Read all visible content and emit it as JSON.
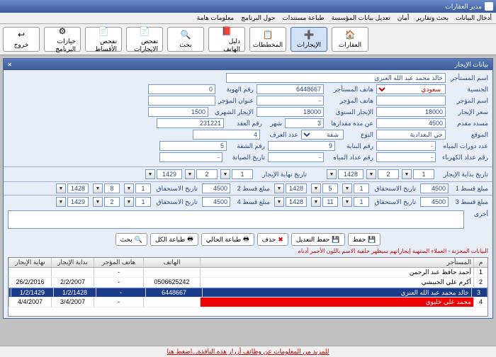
{
  "window": {
    "title": "مدير العقارات"
  },
  "menu": [
    "أدخال البيانات",
    "بحث وتقارير",
    "أمان",
    "تعديل بيانات المؤسسة",
    "طباعة مستندات",
    "حول البرنامج",
    "معلومات هامة"
  ],
  "toolbar": [
    {
      "label": "العقارات",
      "ico": "🏠"
    },
    {
      "label": "الإيجارات",
      "ico": "➕",
      "active": true
    },
    {
      "label": "المخططات",
      "ico": "📋"
    },
    {
      "label": "دليل الهاتف",
      "ico": "📕"
    },
    {
      "label": "بحث",
      "ico": "🔍"
    },
    {
      "label": "تفحص الايجارات",
      "ico": "📄"
    },
    {
      "label": "تفحص الأقساط",
      "ico": "📄"
    },
    {
      "label": "خيارات البرنامج",
      "ico": "⚙"
    },
    {
      "label": "خروج",
      "ico": "↩"
    }
  ],
  "panel": {
    "title": "بيانات الإيجار"
  },
  "fields": {
    "tenant_name_l": "اسم المستأجر",
    "tenant_name": "خالد محمد عبد الله العنزي",
    "nationality_l": "الجنسية",
    "nationality": "سعودي",
    "tenant_phone_l": "هاتف المستأجر",
    "tenant_phone": "6448667",
    "id_no_l": "رقم الهوية",
    "id_no": "0",
    "landlord_l": "اسم المؤجر",
    "landlord": "",
    "landlord_phone_l": "هاتف المؤجر",
    "landlord_phone": "-",
    "landlord_addr_l": "عنوان المؤجر",
    "landlord_addr": "",
    "rent_price_l": "سعر الإيجار",
    "rent_price": "18000",
    "rent_year_l": "الإيجار السنوي",
    "rent_year": "18000",
    "rent_month_l": "الإيجار الشهري",
    "rent_month": "1500",
    "advance_l": "مسدد مقدم",
    "advance": "4500",
    "period_l": "عن مدة مقدارها",
    "period": "3",
    "period_unit": "شهر",
    "contract_l": "رقم العقد",
    "contract": "231221",
    "location_l": "الموقع",
    "location": "حي البغدادية",
    "type_l": "النوع",
    "type": "شقة",
    "rooms_l": "عدد الغرف",
    "rooms": "4",
    "baths_l": "عدد دورات المياه",
    "baths": "-",
    "building_no_l": "رقم البناية",
    "building_no": "9",
    "apt_no_l": "رقم الشقة",
    "apt_no": "5",
    "elec_l": "رقم عداد الكهرباء",
    "elec": "-",
    "water_l": "رقم عداد المياه",
    "water": "-",
    "maint_l": "تاريخ الصيانة",
    "maint": "-"
  },
  "dates": {
    "start_l": "تاريخ بداية الإيجار",
    "start_d": "1",
    "start_m": "2",
    "start_y": "1428",
    "end_l": "تاريخ نهاية الإيجار",
    "end_d": "1",
    "end_m": "2",
    "end_y": "1429"
  },
  "installments": {
    "i1_l": "مبلغ قسط 1",
    "i1": "4500",
    "d1_l": "تاريخ الاستحقاق",
    "d1d": "1",
    "d1m": "5",
    "d1y": "1428",
    "i2_l": "مبلغ قسط 2",
    "i2": "4500",
    "d2_l": "تاريخ الاستحقاق",
    "d2d": "1",
    "d2m": "8",
    "d2y": "1428",
    "i3_l": "مبلغ قسط 3",
    "i3": "4500",
    "d3_l": "تاريخ الاستحقاق",
    "d3d": "1",
    "d3m": "11",
    "d3y": "1428",
    "i4_l": "مبلغ قسط 4",
    "i4": "4500",
    "d4_l": "تاريخ الاستحقاق",
    "d4d": "1",
    "d4m": "2",
    "d4y": "1429"
  },
  "other_l": "أخرى",
  "buttons": {
    "save": "حفظ",
    "edit": "حفظ التعديل",
    "del": "حذف",
    "print_cur": "طباعة الحالي",
    "print_all": "طباعة الكل",
    "search": "بحث"
  },
  "note": "البيانات المخزنة - العملاء المنتهية إيجاراتهم سيظهر خلفية الاسم باللون الأحمر أدناه",
  "table": {
    "cols": {
      "num": "م",
      "name": "المستأجر",
      "phone": "الهاتف",
      "lphone": "هاتف المؤجر",
      "start": "بداية الإيجار",
      "end": "نهاية الإيجار"
    },
    "rows": [
      {
        "num": "1",
        "name": "أحمد حافظ عبد الرحمن",
        "phone": "",
        "lphone": "-",
        "start": "",
        "end": ""
      },
      {
        "num": "2",
        "name": "أكرم علي الحبيشي",
        "phone": "0506625242",
        "lphone": "-",
        "start": "2/2/2007",
        "end": "26/2/2016"
      },
      {
        "num": "3",
        "name": "خالد محمد عبد الله العنزي",
        "phone": "6448667",
        "lphone": "-",
        "start": "1/2/1428",
        "end": "1/2/1429",
        "sel": true
      },
      {
        "num": "4",
        "name": "محمد علي خليوي",
        "phone": "",
        "lphone": "-",
        "start": "3/4/2007",
        "end": "4/4/2007",
        "exp": true
      }
    ]
  },
  "footer": "للمزيد من المعلومات عن وظائف أزرار هذه النافذة...اضغط هنا"
}
